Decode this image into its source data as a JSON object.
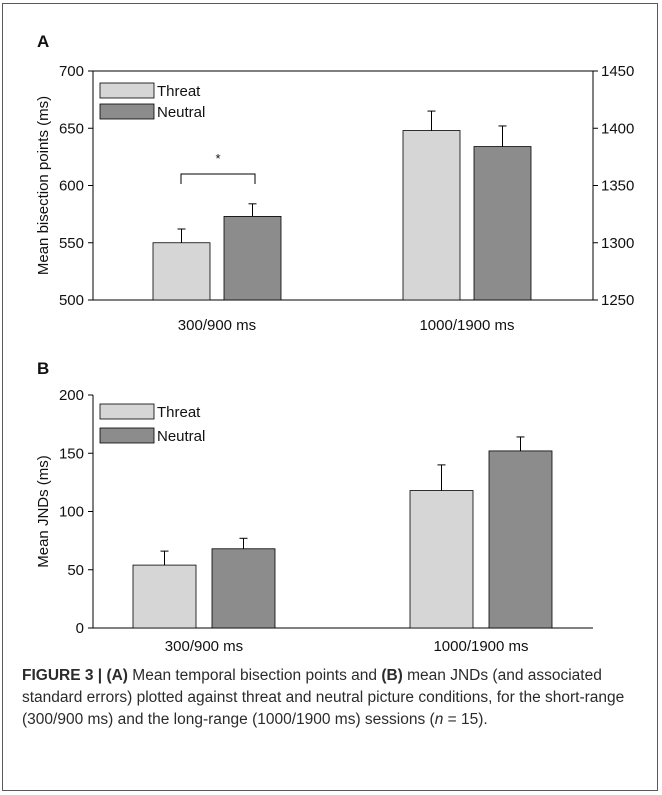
{
  "colors": {
    "threat": "#d6d6d6",
    "neutral": "#8c8c8c",
    "axis": "#000000"
  },
  "chart_data": [
    {
      "type": "bar",
      "panel_label": "A",
      "categories": [
        "300/900 ms",
        "1000/1900 ms"
      ],
      "ylabel": "Mean bisection points (ms)",
      "ylim": [
        500,
        700
      ],
      "yticks": [
        "500",
        "550",
        "600",
        "650",
        "700"
      ],
      "ylim_right": [
        1250,
        1450
      ],
      "yticks_right": [
        "1250",
        "1300",
        "1350",
        "1400",
        "1450"
      ],
      "series": [
        {
          "name": "Threat",
          "values": [
            550,
            1398
          ],
          "errors": [
            12,
            17
          ]
        },
        {
          "name": "Neutral",
          "values": [
            573,
            1384
          ],
          "errors": [
            11,
            18
          ]
        }
      ],
      "annotation": "*",
      "legend": "top-left",
      "grid": false
    },
    {
      "type": "bar",
      "panel_label": "B",
      "categories": [
        "300/900 ms",
        "1000/1900 ms"
      ],
      "ylabel": "Mean JNDs (ms)",
      "ylim": [
        0,
        200
      ],
      "yticks": [
        "0",
        "50",
        "100",
        "150",
        "200"
      ],
      "series": [
        {
          "name": "Threat",
          "values": [
            54,
            118
          ],
          "errors": [
            12,
            22
          ]
        },
        {
          "name": "Neutral",
          "values": [
            68,
            152
          ],
          "errors": [
            9,
            12
          ]
        }
      ],
      "legend": "top-left",
      "grid": false
    }
  ],
  "caption": {
    "figure_label": "FIGURE 3 |",
    "part_a_label": "(A)",
    "text_1": " Mean temporal bisection points and ",
    "part_b_label": "(B)",
    "text_2": " mean JNDs (and associated standard errors) plotted against threat and neutral picture conditions, for the short-range (300/900 ms) and the long-range (1000/1900 ms) sessions (",
    "n_symbol": "n",
    "text_3": " = 15)."
  }
}
